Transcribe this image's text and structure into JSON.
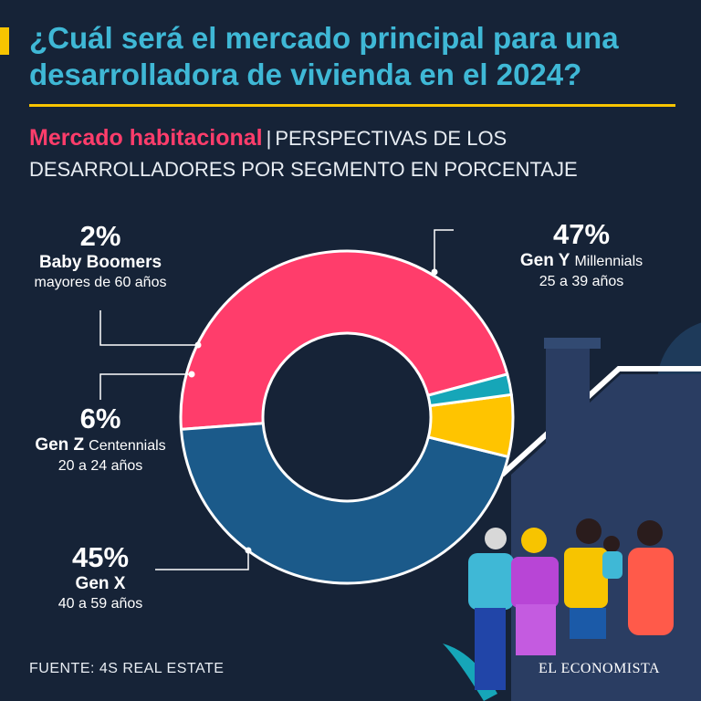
{
  "header": {
    "title": "¿Cuál será el mercado principal para una desarrolladora de vivienda en el 2024?",
    "section": "Mercado habitacional",
    "separator": "|",
    "subtitle": "PERSPECTIVAS DE LOS DESARROLLADORES POR SEGMENTO EN PORCENTAJE"
  },
  "labels": {
    "millennials": {
      "pct": "47%",
      "name": "Gen Y",
      "extra": "Millennials",
      "desc": "25 a 39 años"
    },
    "genx": {
      "pct": "45%",
      "name": "Gen X",
      "extra": "",
      "desc": "40 a 59 años"
    },
    "centennials": {
      "pct": "6%",
      "name": "Gen Z",
      "extra": "Centennials",
      "desc": "20 a 24 años"
    },
    "boomers": {
      "pct": "2%",
      "name": "Baby Boomers",
      "extra": "",
      "desc": "mayores de 60 años"
    }
  },
  "footer": {
    "source": "FUENTE: 4S REAL ESTATE",
    "brand": "EL ECONOMISTA"
  },
  "colors": {
    "background": "#162337",
    "title": "#3fb8d6",
    "accent_yellow": "#f7c400",
    "accent_pink": "#ff3d6b"
  },
  "chart_data": {
    "type": "pie",
    "donut": true,
    "title": "",
    "categories": [
      "Gen Y Millennials",
      "Gen X",
      "Gen Z Centennials",
      "Baby Boomers"
    ],
    "values": [
      47,
      45,
      6,
      2
    ],
    "unit": "%",
    "colors": [
      "#ff3d6b",
      "#1b5a8a",
      "#ffc400",
      "#16a6b8"
    ]
  }
}
